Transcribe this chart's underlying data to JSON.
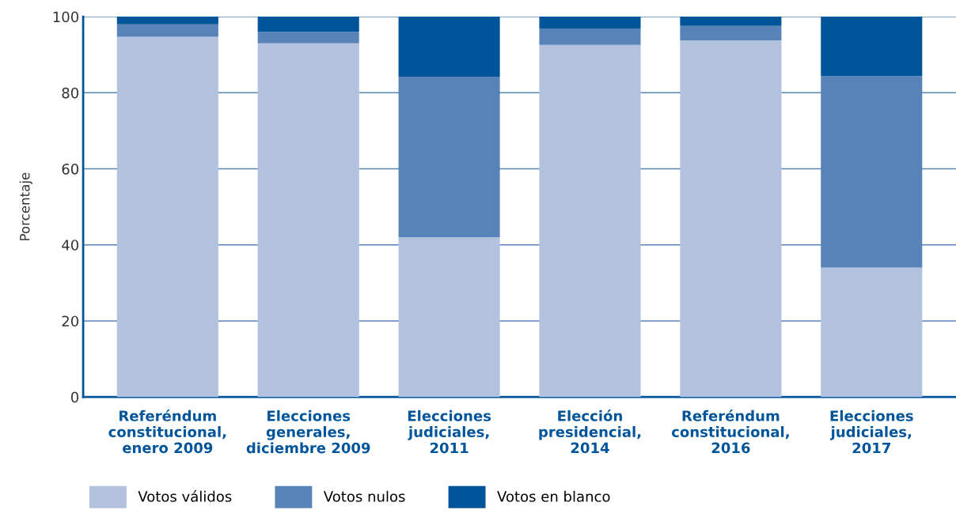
{
  "chart_data": {
    "type": "bar",
    "stacked": true,
    "ylabel": "Porcentaje",
    "categories": [
      "Referéndum\nconstitucional,\nenero 2009",
      "Elecciones\ngenerales,\ndiciembre 2009",
      "Elecciones\njudiciales,\n2011",
      "Elección\npresidencial,\n2014",
      "Referéndum\nconstitucional,\n2016",
      "Elecciones\njudiciales,\n2017"
    ],
    "series": [
      {
        "name": "Votos válidos",
        "color": "#b2c1de",
        "values": [
          94.7,
          93.0,
          42.0,
          92.6,
          93.8,
          34.0
        ]
      },
      {
        "name": "Votos nulos",
        "color": "#5783b8",
        "values": [
          3.3,
          3.0,
          42.2,
          4.3,
          3.8,
          50.4
        ]
      },
      {
        "name": "Votos en blanco",
        "color": "#00559a",
        "values": [
          2.0,
          4.0,
          15.8,
          3.1,
          2.4,
          15.6
        ]
      }
    ],
    "ylim": [
      0,
      100
    ],
    "yticks": [
      0,
      20,
      40,
      60,
      80,
      100
    ],
    "grid": "y",
    "legend": "bottom left"
  }
}
